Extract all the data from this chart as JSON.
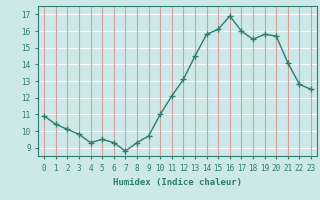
{
  "x": [
    0,
    1,
    2,
    3,
    4,
    5,
    6,
    7,
    8,
    9,
    10,
    11,
    12,
    13,
    14,
    15,
    16,
    17,
    18,
    19,
    20,
    21,
    22,
    23
  ],
  "y": [
    10.9,
    10.4,
    10.1,
    9.8,
    9.3,
    9.5,
    9.3,
    8.8,
    9.3,
    9.7,
    11.0,
    12.1,
    13.1,
    14.5,
    15.8,
    16.1,
    16.9,
    16.0,
    15.5,
    15.8,
    15.7,
    14.1,
    12.8,
    12.5
  ],
  "line_color": "#2e7d6e",
  "marker": "+",
  "marker_size": 4,
  "bg_color": "#cce8e8",
  "grid_color_h": "#ffffff",
  "grid_color_v": "#d4a0a0",
  "xlabel": "Humidex (Indice chaleur)",
  "xlim": [
    -0.5,
    23.5
  ],
  "ylim": [
    8.5,
    17.5
  ],
  "yticks": [
    9,
    10,
    11,
    12,
    13,
    14,
    15,
    16,
    17
  ],
  "xticks": [
    0,
    1,
    2,
    3,
    4,
    5,
    6,
    7,
    8,
    9,
    10,
    11,
    12,
    13,
    14,
    15,
    16,
    17,
    18,
    19,
    20,
    21,
    22,
    23
  ],
  "tick_color": "#2e7d6e",
  "label_fontsize": 6.5,
  "tick_fontsize": 5.5,
  "linewidth": 1.0,
  "marker_linewidth": 1.0
}
